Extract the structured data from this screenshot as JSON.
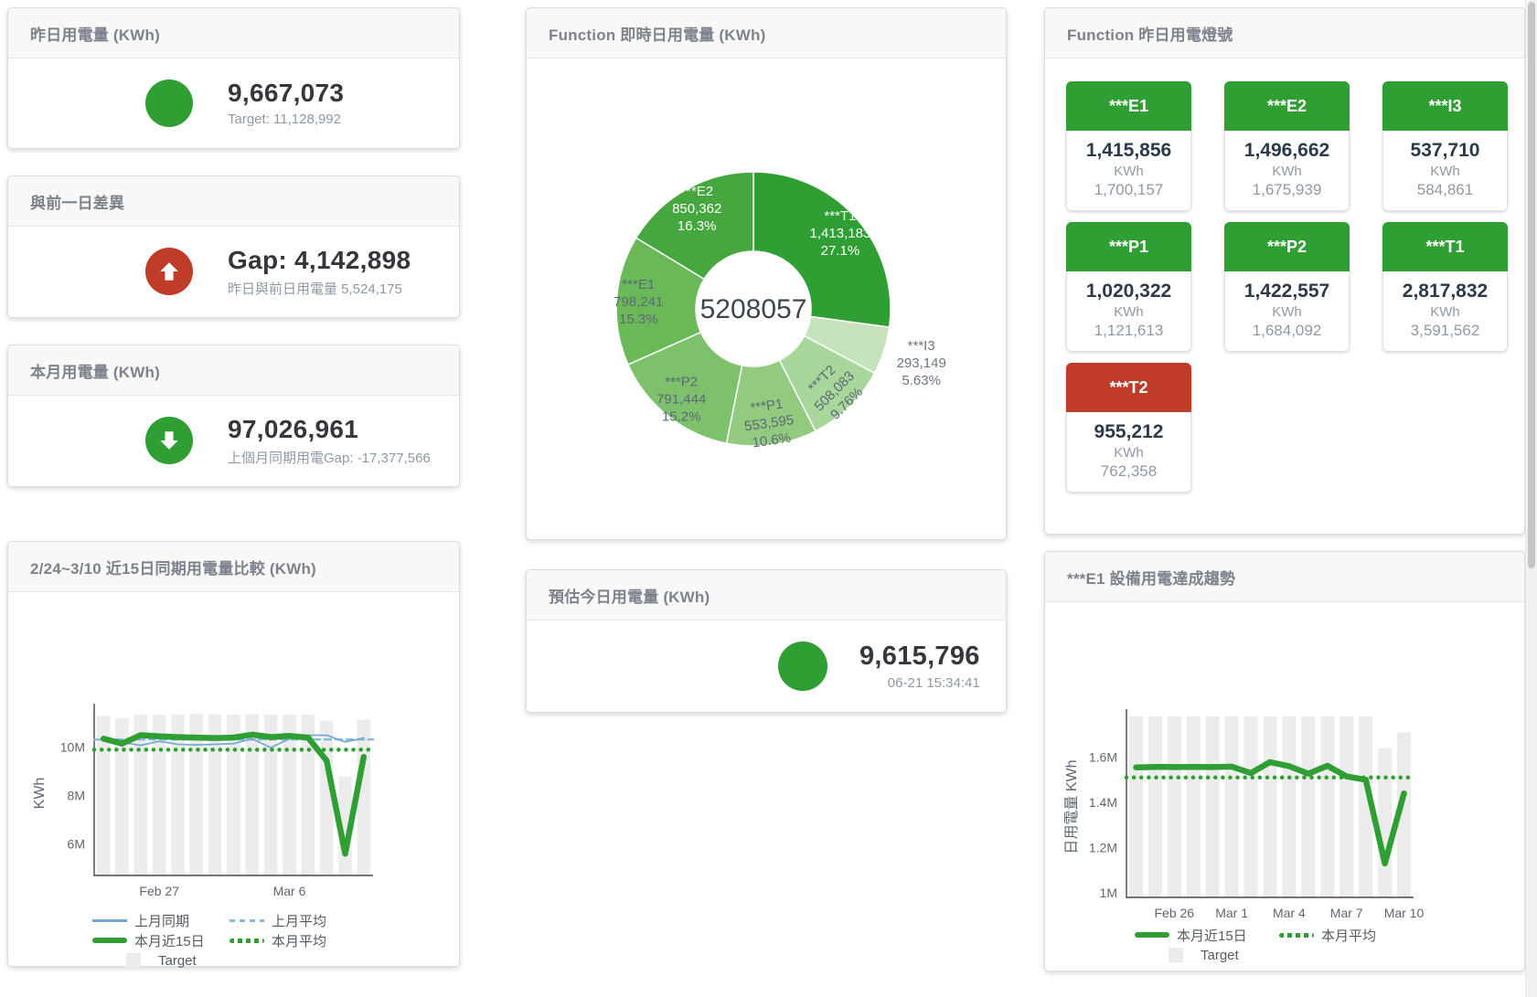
{
  "colors": {
    "green": "#2f9e33",
    "red": "#bf3c28",
    "target_gray": "#ececec",
    "blue": "#74a9d1",
    "blue_light": "#86b8da",
    "title_gray": "#7c838c"
  },
  "panels": {
    "yesterday": {
      "title": "昨日用電量 (KWh)",
      "value": "9,667,073",
      "sub": "Target: 11,128,992"
    },
    "day_gap": {
      "title": "與前一日差異",
      "value": "Gap: 4,142,898",
      "sub": "昨日與前日用電量 5,524,175"
    },
    "month": {
      "title": "本月用電量 (KWh)",
      "value": "97,026,961",
      "sub": "上個月同期用電Gap: -17,377,566"
    },
    "estimate": {
      "title": "預估今日用電量 (KWh)",
      "value": "9,615,796",
      "sub": "06-21 15:34:41"
    }
  },
  "lights": {
    "title": "Function 昨日用電燈號",
    "tiles": [
      {
        "name": "***E1",
        "value": "1,415,856",
        "unit": "KWh",
        "target": "1,700,157",
        "status": "green"
      },
      {
        "name": "***E2",
        "value": "1,496,662",
        "unit": "KWh",
        "target": "1,675,939",
        "status": "green"
      },
      {
        "name": "***I3",
        "value": "537,710",
        "unit": "KWh",
        "target": "584,861",
        "status": "green"
      },
      {
        "name": "***P1",
        "value": "1,020,322",
        "unit": "KWh",
        "target": "1,121,613",
        "status": "green"
      },
      {
        "name": "***P2",
        "value": "1,422,557",
        "unit": "KWh",
        "target": "1,684,092",
        "status": "green"
      },
      {
        "name": "***T1",
        "value": "2,817,832",
        "unit": "KWh",
        "target": "3,591,562",
        "status": "green"
      },
      {
        "name": "***T2",
        "value": "955,212",
        "unit": "KWh",
        "target": "762,358",
        "status": "red"
      }
    ]
  },
  "chart_data": [
    {
      "id": "donut",
      "type": "pie",
      "title": "Function 即時日用電量 (KWh)",
      "center_total": "5208057",
      "legend_position": "none",
      "grid": false,
      "slices": [
        {
          "label": "***T1",
          "value": 1413183,
          "value_text": "1,413,183",
          "pct_text": "27.1%",
          "color": "#2f9e33",
          "text_color": "#ffffff",
          "label_pos": "in",
          "tilt": 0
        },
        {
          "label": "***I3",
          "value": 293149,
          "value_text": "293,149",
          "pct_text": "5.63%",
          "color": "#c6e3bb",
          "text_color": "#6b7682",
          "label_pos": "out",
          "tilt": 0
        },
        {
          "label": "***T2",
          "value": 508083,
          "value_text": "508,083",
          "pct_text": "9.76%",
          "color": "#a9d69a",
          "text_color": "#5d6874",
          "label_pos": "in",
          "tilt": -45
        },
        {
          "label": "***P1",
          "value": 553595,
          "value_text": "553,595",
          "pct_text": "10.6%",
          "color": "#92ca80",
          "text_color": "#5d6874",
          "label_pos": "in",
          "tilt": -8
        },
        {
          "label": "***P2",
          "value": 791444,
          "value_text": "791,444",
          "pct_text": "15.2%",
          "color": "#7dc16c",
          "text_color": "#5d6874",
          "label_pos": "in",
          "tilt": 0
        },
        {
          "label": "***E1",
          "value": 798241,
          "value_text": "798,241",
          "pct_text": "15.3%",
          "color": "#69b958",
          "text_color": "#5d6874",
          "label_pos": "in",
          "tilt": 0
        },
        {
          "label": "***E2",
          "value": 850362,
          "value_text": "850,362",
          "pct_text": "16.3%",
          "color": "#45a73d",
          "text_color": "#ffffff",
          "label_pos": "in",
          "tilt": 0
        }
      ]
    },
    {
      "id": "compare15",
      "type": "line",
      "title": "2/24~3/10 近15日同期用電量比較 (KWh)",
      "ylabel": "KWh",
      "n": 15,
      "ylim": [
        4700000,
        11500000
      ],
      "grid": false,
      "yticks": [
        {
          "v": 6000000,
          "label": "6M"
        },
        {
          "v": 8000000,
          "label": "8M"
        },
        {
          "v": 10000000,
          "label": "10M"
        }
      ],
      "xticks": [
        {
          "i": 3,
          "label": "Feb 27"
        },
        {
          "i": 10,
          "label": "Mar 6"
        }
      ],
      "target_name": "Target",
      "target_color": "#ececec",
      "target": [
        11300000,
        11200000,
        11350000,
        11350000,
        11350000,
        11380000,
        11360000,
        11350000,
        11360000,
        11350000,
        11350000,
        11350000,
        11100000,
        8800000,
        11150000
      ],
      "series": [
        {
          "name": "上月平均",
          "const": 10320000,
          "color": "#86b8da",
          "width": 2.4,
          "dash": "dashed"
        },
        {
          "name": "上月同期",
          "values": [
            10450000,
            10200000,
            10080000,
            10250000,
            10120000,
            10100000,
            10120000,
            10150000,
            10350000,
            9980000,
            10350000,
            10500000,
            10500000,
            10220000,
            10380000
          ],
          "color": "#74a9d1",
          "width": 1.8,
          "dash": "solid"
        },
        {
          "name": "本月平均",
          "const": 9900000,
          "color": "#2f9e33",
          "width": 4.5,
          "dash": "dotted"
        },
        {
          "name": "本月近15日",
          "values": [
            10350000,
            10150000,
            10500000,
            10450000,
            10420000,
            10400000,
            10380000,
            10400000,
            10520000,
            10420000,
            10470000,
            10400000,
            9450000,
            5600000,
            9600000
          ],
          "color": "#2f9e33",
          "width": 6.5,
          "dash": "solid"
        }
      ],
      "legend": [
        {
          "label": "上月同期",
          "swatch": "line",
          "color": "#74a9d1"
        },
        {
          "label": "上月平均",
          "swatch": "dash",
          "color": "#86b8da"
        },
        {
          "label": "本月近15日",
          "swatch": "thick",
          "color": "#2f9e33"
        },
        {
          "label": "本月平均",
          "swatch": "dots",
          "color": "#2f9e33"
        },
        {
          "label": "Target",
          "swatch": "square",
          "color": "#ececec",
          "indent": true
        }
      ]
    },
    {
      "id": "e1trend",
      "type": "line",
      "title": "***E1 設備用電達成趨勢",
      "ylabel": "日用電量 KWh",
      "n": 15,
      "ylim": [
        980000,
        1780000
      ],
      "grid": false,
      "yticks": [
        {
          "v": 1000000,
          "label": "1M"
        },
        {
          "v": 1200000,
          "label": "1.2M"
        },
        {
          "v": 1400000,
          "label": "1.4M"
        },
        {
          "v": 1600000,
          "label": "1.6M"
        }
      ],
      "xticks": [
        {
          "i": 2,
          "label": "Feb 26"
        },
        {
          "i": 5,
          "label": "Mar 1"
        },
        {
          "i": 8,
          "label": "Mar 4"
        },
        {
          "i": 11,
          "label": "Mar 7"
        },
        {
          "i": 14,
          "label": "Mar 10"
        }
      ],
      "target_name": "Target",
      "target_color": "#ececec",
      "target": [
        1780000,
        1780000,
        1780000,
        1780000,
        1780000,
        1780000,
        1780000,
        1780000,
        1780000,
        1780000,
        1780000,
        1780000,
        1780000,
        1640000,
        1710000
      ],
      "series": [
        {
          "name": "本月平均",
          "const": 1510000,
          "color": "#2f9e33",
          "width": 4.5,
          "dash": "dotted"
        },
        {
          "name": "本月近15日",
          "values": [
            1555000,
            1557000,
            1556000,
            1557000,
            1556000,
            1558000,
            1530000,
            1578000,
            1560000,
            1527000,
            1562000,
            1515000,
            1500000,
            1130000,
            1440000
          ],
          "color": "#2f9e33",
          "width": 6.5,
          "dash": "solid"
        }
      ],
      "legend": [
        {
          "label": "本月近15日",
          "swatch": "thick",
          "color": "#2f9e33"
        },
        {
          "label": "本月平均",
          "swatch": "dots",
          "color": "#2f9e33"
        },
        {
          "label": "Target",
          "swatch": "square",
          "color": "#ececec",
          "indent": true
        }
      ]
    }
  ]
}
